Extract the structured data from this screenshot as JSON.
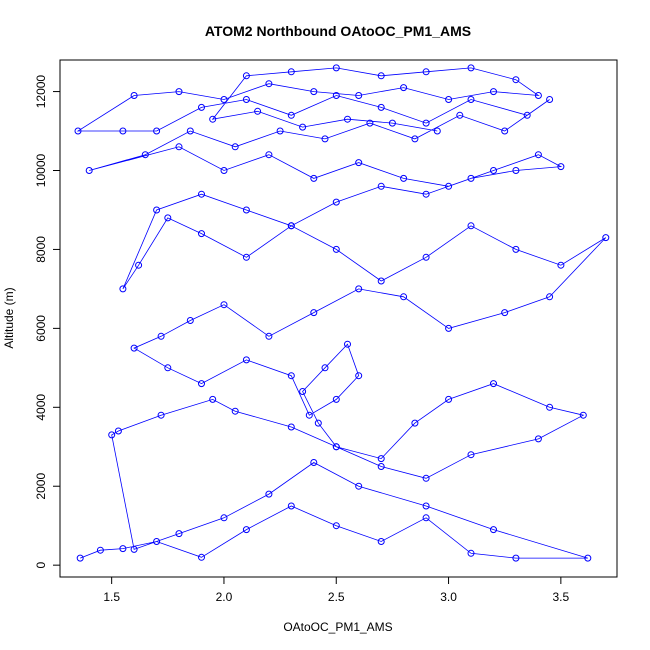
{
  "chart_data": {
    "type": "scatter",
    "title": "ATOM2 Northbound OAtoOC_PM1_AMS",
    "xlabel": "OAtoOC_PM1_AMS",
    "ylabel": "Altitude (m)",
    "xlim": [
      1.27,
      3.75
    ],
    "ylim": [
      -300,
      12800
    ],
    "x_ticks": [
      1.5,
      2.0,
      2.5,
      3.0,
      3.5
    ],
    "x_tick_labels": [
      "1.5",
      "2.0",
      "2.5",
      "3.0",
      "3.5"
    ],
    "y_ticks": [
      0,
      2000,
      4000,
      6000,
      8000,
      10000,
      12000
    ],
    "y_tick_labels": [
      "0",
      "2000",
      "4000",
      "6000",
      "8000",
      "10000",
      "12000"
    ],
    "series_color": "#0000ff",
    "marker": "open-circle",
    "connect_points": true,
    "series": [
      {
        "x": [
          1.36,
          1.45,
          1.55,
          1.7,
          1.9,
          2.1,
          2.3,
          2.5,
          2.7,
          2.9,
          3.1,
          3.3,
          3.62,
          3.2,
          2.9,
          2.6,
          2.4,
          2.2,
          2.0,
          1.8,
          1.6,
          1.5,
          1.53,
          1.72,
          1.95,
          2.05,
          2.3,
          2.5,
          2.7,
          2.85,
          3.0,
          3.2,
          3.45,
          3.6,
          3.4,
          3.1,
          2.9,
          2.7,
          2.5,
          2.42,
          2.35,
          2.45,
          2.55,
          2.6,
          2.5,
          2.38,
          2.3,
          2.1,
          1.9,
          1.75,
          1.6,
          1.72,
          1.85,
          2.0,
          2.2,
          2.4,
          2.6,
          2.8,
          3.0,
          3.25,
          3.45,
          3.7,
          3.5,
          3.3,
          3.1,
          2.9,
          2.7,
          2.5,
          2.3,
          2.1,
          1.9,
          1.75,
          1.62,
          1.55,
          1.7,
          1.9,
          2.1,
          2.3,
          2.5,
          2.7,
          2.9,
          3.1,
          3.3,
          3.5,
          3.4,
          3.2,
          3.0,
          2.8,
          2.6,
          2.4,
          2.2,
          2.0,
          1.8,
          1.4,
          1.65,
          1.85,
          2.05,
          2.25,
          2.45,
          2.65,
          2.85,
          3.05,
          3.25,
          3.45,
          3.35,
          3.1,
          2.9,
          2.7,
          2.5,
          2.3,
          2.1,
          1.9,
          1.7,
          1.55,
          1.35,
          1.6,
          1.8,
          2.0,
          2.2,
          2.4,
          2.6,
          2.8,
          3.0,
          3.2,
          3.4,
          3.3,
          3.1,
          2.9,
          2.7,
          2.5,
          2.3,
          2.1,
          1.95,
          2.15,
          2.35,
          2.55,
          2.75,
          2.95
        ],
        "y": [
          180,
          380,
          420,
          600,
          200,
          900,
          1500,
          1000,
          600,
          1200,
          300,
          180,
          180,
          900,
          1500,
          2000,
          2600,
          1800,
          1200,
          800,
          400,
          3300,
          3400,
          3800,
          4200,
          3900,
          3500,
          3000,
          2700,
          3600,
          4200,
          4600,
          4000,
          3800,
          3200,
          2800,
          2200,
          2500,
          3000,
          3600,
          4400,
          5000,
          5600,
          4800,
          4200,
          3800,
          4800,
          5200,
          4600,
          5000,
          5500,
          5800,
          6200,
          6600,
          5800,
          6400,
          7000,
          6800,
          6000,
          6400,
          6800,
          8300,
          7600,
          8000,
          8600,
          7800,
          7200,
          8000,
          8600,
          7800,
          8400,
          8800,
          7600,
          7000,
          9000,
          9400,
          9000,
          8600,
          9200,
          9600,
          9400,
          9800,
          10000,
          10100,
          10400,
          10000,
          9600,
          9800,
          10200,
          9800,
          10400,
          10000,
          10600,
          10000,
          10400,
          11000,
          10600,
          11000,
          10800,
          11200,
          10800,
          11400,
          11000,
          11800,
          11400,
          11800,
          11200,
          11600,
          11900,
          11400,
          11800,
          11600,
          11000,
          11000,
          11000,
          11900,
          12000,
          11800,
          12200,
          12000,
          11900,
          12100,
          11800,
          12000,
          11900,
          12300,
          12600,
          12500,
          12400,
          12600,
          12500,
          12400,
          11300,
          11500,
          11100,
          11300,
          11200,
          11000
        ]
      }
    ]
  }
}
